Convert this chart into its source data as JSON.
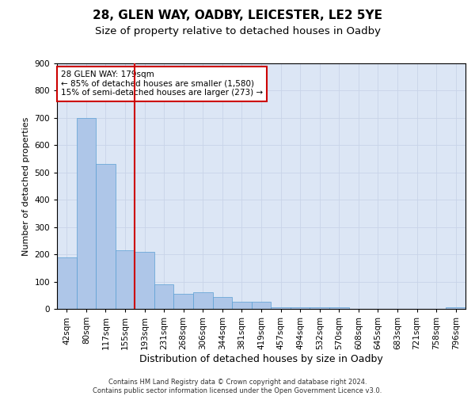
{
  "title1": "28, GLEN WAY, OADBY, LEICESTER, LE2 5YE",
  "title2": "Size of property relative to detached houses in Oadby",
  "xlabel": "Distribution of detached houses by size in Oadby",
  "ylabel": "Number of detached properties",
  "categories": [
    "42sqm",
    "80sqm",
    "117sqm",
    "155sqm",
    "193sqm",
    "231sqm",
    "268sqm",
    "306sqm",
    "344sqm",
    "381sqm",
    "419sqm",
    "457sqm",
    "494sqm",
    "532sqm",
    "570sqm",
    "608sqm",
    "645sqm",
    "683sqm",
    "721sqm",
    "758sqm",
    "796sqm"
  ],
  "values": [
    190,
    700,
    530,
    215,
    210,
    90,
    55,
    60,
    45,
    25,
    25,
    5,
    5,
    5,
    5,
    0,
    0,
    0,
    0,
    0,
    5
  ],
  "bar_color": "#aec6e8",
  "bar_edge_color": "#5a9fd4",
  "vline_x_index": 3.5,
  "vline_color": "#cc0000",
  "annotation_text": "28 GLEN WAY: 179sqm\n← 85% of detached houses are smaller (1,580)\n15% of semi-detached houses are larger (273) →",
  "annotation_box_color": "#cc0000",
  "ylim": [
    0,
    900
  ],
  "yticks": [
    0,
    100,
    200,
    300,
    400,
    500,
    600,
    700,
    800,
    900
  ],
  "grid_color": "#c8d4e8",
  "background_color": "#dce6f5",
  "footer": "Contains HM Land Registry data © Crown copyright and database right 2024.\nContains public sector information licensed under the Open Government Licence v3.0.",
  "title1_fontsize": 11,
  "title2_fontsize": 9.5,
  "xlabel_fontsize": 9,
  "ylabel_fontsize": 8,
  "tick_fontsize": 7.5,
  "footer_fontsize": 6,
  "annotation_fontsize": 7.5
}
